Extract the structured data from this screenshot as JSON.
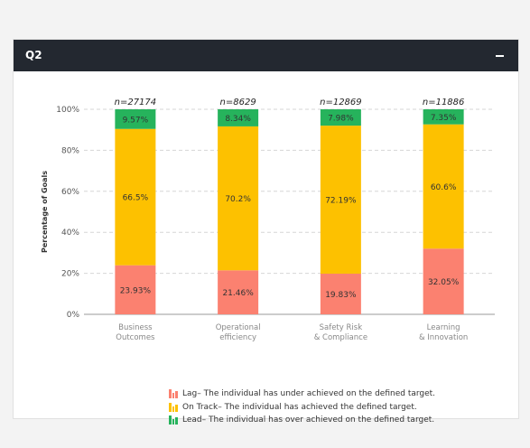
{
  "panel": {
    "title": "Q2"
  },
  "colors": {
    "lag": "#fb8170",
    "on_track": "#fdc100",
    "lead": "#26b35c",
    "header_bg": "#232830"
  },
  "chart_data": {
    "type": "bar",
    "stacked": true,
    "ylabel": "Percentage of Goals",
    "ylim": [
      0,
      100
    ],
    "yticks": [
      "0%",
      "20%",
      "40%",
      "60%",
      "80%",
      "100%"
    ],
    "categories": [
      {
        "line1": "Business",
        "line2": "Outcomes",
        "n": "n=27174"
      },
      {
        "line1": "Operational",
        "line2": "efficiency",
        "n": "n=8629"
      },
      {
        "line1": "Safety Risk",
        "line2": "& Compliance",
        "n": "n=12869"
      },
      {
        "line1": "Learning",
        "line2": "& Innovation",
        "n": "n=11886"
      }
    ],
    "series": [
      {
        "name": "Lag",
        "values": [
          23.93,
          21.46,
          19.83,
          32.05
        ],
        "labels": [
          "23.93%",
          "21.46%",
          "19.83%",
          "32.05%"
        ]
      },
      {
        "name": "On Track",
        "values": [
          66.5,
          70.2,
          72.19,
          60.6
        ],
        "labels": [
          "66.5%",
          "70.2%",
          "72.19%",
          "60.6%"
        ]
      },
      {
        "name": "Lead",
        "values": [
          9.57,
          8.34,
          7.98,
          7.35
        ],
        "labels": [
          "9.57%",
          "8.34%",
          "7.98%",
          "7.35%"
        ]
      }
    ],
    "legend": [
      {
        "label": "Lag",
        "text": " – The individual has under achieved on the defined target."
      },
      {
        "label": "On Track",
        "text": " – The individual has achieved the defined target."
      },
      {
        "label": "Lead",
        "text": " – The individual has over achieved on the defined target."
      }
    ],
    "legend_position": "bottom-center",
    "grid": true
  }
}
